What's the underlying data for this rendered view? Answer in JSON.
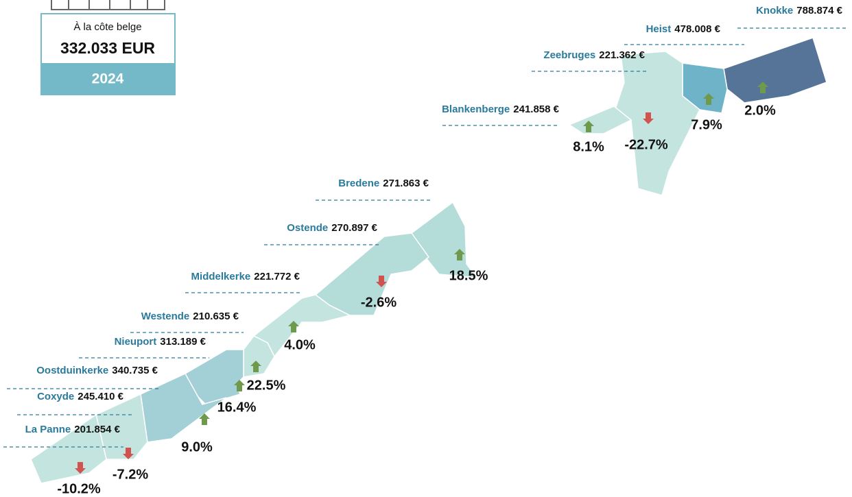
{
  "summary": {
    "label": "À la côte belge",
    "value": "332.033 EUR",
    "year": "2024"
  },
  "regions": [
    {
      "name": "Knokke",
      "price": "788.874 €",
      "change": "2.0%"
    },
    {
      "name": "Heist",
      "price": "478.008 €",
      "change": "7.9%"
    },
    {
      "name": "Zeebruges",
      "price": "221.362 €",
      "change": "-22.7%"
    },
    {
      "name": "Blankenberge",
      "price": "241.858 €",
      "change": "8.1%"
    },
    {
      "name": "Bredene",
      "price": "271.863 €",
      "change": "18.5%"
    },
    {
      "name": "Ostende",
      "price": "270.897 €",
      "change": "-2.6%"
    },
    {
      "name": "Middelkerke",
      "price": "221.772 €",
      "change": "4.0%"
    },
    {
      "name": "Westende",
      "price": "210.635 €",
      "change": "22.5%"
    },
    {
      "name": "Nieuport",
      "price": "313.189 €",
      "change": "16.4%"
    },
    {
      "name": "Oostduinkerke",
      "price": "340.735 €",
      "change": "9.0%"
    },
    {
      "name": "Coxyde",
      "price": "245.410 €",
      "change": "-7.2%"
    },
    {
      "name": "La Panne",
      "price": "201.854 €",
      "change": "-10.2%"
    }
  ]
}
